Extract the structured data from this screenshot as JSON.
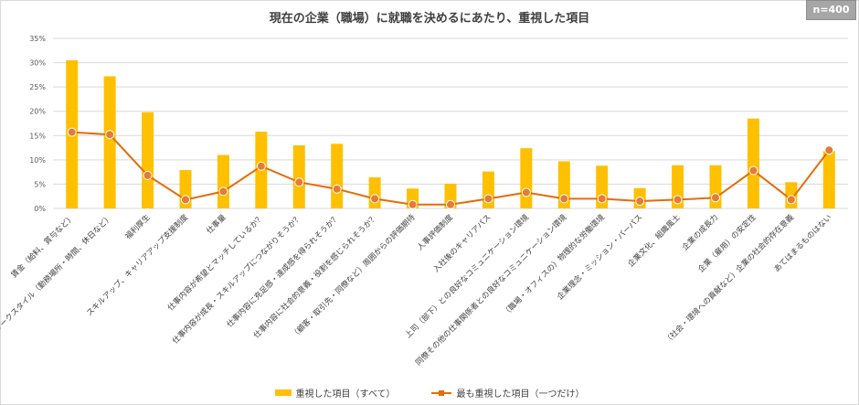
{
  "chart_data": {
    "type": "bar+line",
    "title": "現在の企業（職場）に就職を決めるにあたり、重視した項目",
    "badge": "n=400",
    "categories": [
      "賃金（給料、賞与など）",
      "ワークスタイル（勤務場所・時間、休日など）",
      "福利厚生",
      "スキルアップ、キャリアアップ支援制度",
      "仕事量",
      "仕事内容が希望とマッチしているか？",
      "仕事内容が成長・スキルアップにつながりそうか？",
      "仕事内容に充足感・達成感を得られそうか？",
      "仕事内容に社会的意義・役割を感じられそうか？",
      "（顧客・取引先・同僚など）周囲からの評価期待",
      "人事評価制度",
      "入社後のキャリアパス",
      "上司（部下）との良好なコミュニケーション環境",
      "同僚その他の仕事関係者との良好なコミュニケーション環境",
      "（職場・オフィスの）物理的な労働環境",
      "企業理念・ミッション・パーパス",
      "企業文化、組織風土",
      "企業の成長力",
      "企業（雇用）の安定性",
      "（社会・環境への貢献など）企業の社会的存在意義",
      "あてはまるものはない"
    ],
    "series": [
      {
        "name": "重視した項目（すべて）",
        "type": "bar",
        "color": "#ffc000",
        "values": [
          30.5,
          27.2,
          19.8,
          7.9,
          11.0,
          15.8,
          13.0,
          13.3,
          6.4,
          4.1,
          5.1,
          7.6,
          12.4,
          9.7,
          8.8,
          4.2,
          8.9,
          8.9,
          18.5,
          5.4,
          11.8
        ]
      },
      {
        "name": "最も重視した項目（一つだけ）",
        "type": "line",
        "color": "#e46c0a",
        "values": [
          15.7,
          15.2,
          6.8,
          1.8,
          3.5,
          8.7,
          5.4,
          4.0,
          2.0,
          0.8,
          0.8,
          2.0,
          3.3,
          2.0,
          2.0,
          1.5,
          1.8,
          2.2,
          7.8,
          1.8,
          12.0
        ]
      }
    ],
    "yticks": [
      "0%",
      "5%",
      "10%",
      "15%",
      "20%",
      "25%",
      "30%",
      "35%"
    ],
    "ylim": [
      0,
      35
    ],
    "grid": true,
    "legend": "bottom"
  }
}
